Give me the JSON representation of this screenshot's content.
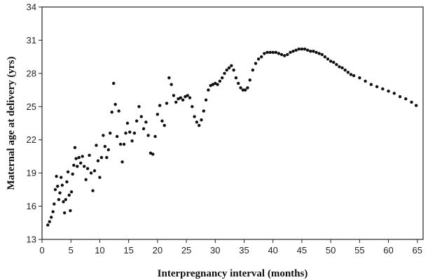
{
  "chart_data": {
    "type": "scatter",
    "title": "",
    "xlabel": "Interpregnancy interval (months)",
    "ylabel": "Maternal age at delivery (yrs)",
    "xlim": [
      0,
      66
    ],
    "ylim": [
      13,
      34
    ],
    "x_ticks": [
      0,
      5,
      10,
      15,
      20,
      25,
      30,
      35,
      40,
      45,
      50,
      55,
      60,
      65
    ],
    "y_ticks": [
      13,
      16,
      19,
      22,
      25,
      28,
      31,
      34
    ],
    "grid": false,
    "legend": "none",
    "marker_color": "#111111",
    "series": [
      {
        "points": [
          [
            1.0,
            14.3
          ],
          [
            1.3,
            14.6
          ],
          [
            1.6,
            15.0
          ],
          [
            1.9,
            15.5
          ],
          [
            2.1,
            16.2
          ],
          [
            2.3,
            17.5
          ],
          [
            2.5,
            18.7
          ],
          [
            2.7,
            17.8
          ],
          [
            2.9,
            16.6
          ],
          [
            3.1,
            17.2
          ],
          [
            3.3,
            18.6
          ],
          [
            3.5,
            17.9
          ],
          [
            3.7,
            16.4
          ],
          [
            3.9,
            15.4
          ],
          [
            4.1,
            16.6
          ],
          [
            4.3,
            18.2
          ],
          [
            4.5,
            19.1
          ],
          [
            4.7,
            17.0
          ],
          [
            4.9,
            15.6
          ],
          [
            5.1,
            17.3
          ],
          [
            5.3,
            18.9
          ],
          [
            5.5,
            19.7
          ],
          [
            5.7,
            21.3
          ],
          [
            5.9,
            20.3
          ],
          [
            6.1,
            19.6
          ],
          [
            6.4,
            20.4
          ],
          [
            6.7,
            19.9
          ],
          [
            7.0,
            20.5
          ],
          [
            7.3,
            19.6
          ],
          [
            7.6,
            18.4
          ],
          [
            7.9,
            19.4
          ],
          [
            8.2,
            20.6
          ],
          [
            8.5,
            19.0
          ],
          [
            8.8,
            17.4
          ],
          [
            9.1,
            19.2
          ],
          [
            9.4,
            21.5
          ],
          [
            9.7,
            20.1
          ],
          [
            10.0,
            18.6
          ],
          [
            10.3,
            20.4
          ],
          [
            10.6,
            22.4
          ],
          [
            10.9,
            21.4
          ],
          [
            11.2,
            20.4
          ],
          [
            11.5,
            21.1
          ],
          [
            11.8,
            22.6
          ],
          [
            12.1,
            24.5
          ],
          [
            12.4,
            27.1
          ],
          [
            12.7,
            25.2
          ],
          [
            13.0,
            22.3
          ],
          [
            13.3,
            24.6
          ],
          [
            13.6,
            21.6
          ],
          [
            13.9,
            20.0
          ],
          [
            14.2,
            21.6
          ],
          [
            14.5,
            22.6
          ],
          [
            14.8,
            23.5
          ],
          [
            15.2,
            22.7
          ],
          [
            15.6,
            21.9
          ],
          [
            16.0,
            22.6
          ],
          [
            16.4,
            23.7
          ],
          [
            16.8,
            25.0
          ],
          [
            17.2,
            24.1
          ],
          [
            17.6,
            23.0
          ],
          [
            18.0,
            23.6
          ],
          [
            18.4,
            22.4
          ],
          [
            18.8,
            20.8
          ],
          [
            19.2,
            20.7
          ],
          [
            19.6,
            22.3
          ],
          [
            20.0,
            24.3
          ],
          [
            20.4,
            25.1
          ],
          [
            20.8,
            23.7
          ],
          [
            21.2,
            23.3
          ],
          [
            21.6,
            25.3
          ],
          [
            22.0,
            27.6
          ],
          [
            22.4,
            27.0
          ],
          [
            22.8,
            26.0
          ],
          [
            23.2,
            25.4
          ],
          [
            23.6,
            25.7
          ],
          [
            24.0,
            25.8
          ],
          [
            24.4,
            25.6
          ],
          [
            24.8,
            25.9
          ],
          [
            25.2,
            26.0
          ],
          [
            25.6,
            25.8
          ],
          [
            26.0,
            25.0
          ],
          [
            26.4,
            24.1
          ],
          [
            26.8,
            23.6
          ],
          [
            27.2,
            23.3
          ],
          [
            27.6,
            23.8
          ],
          [
            28.0,
            24.6
          ],
          [
            28.4,
            25.6
          ],
          [
            28.8,
            26.5
          ],
          [
            29.2,
            26.9
          ],
          [
            29.6,
            27.0
          ],
          [
            30.0,
            27.1
          ],
          [
            30.4,
            27.0
          ],
          [
            30.8,
            27.3
          ],
          [
            31.2,
            27.6
          ],
          [
            31.6,
            28.0
          ],
          [
            32.0,
            28.3
          ],
          [
            32.4,
            28.5
          ],
          [
            32.8,
            28.7
          ],
          [
            33.2,
            28.3
          ],
          [
            33.6,
            27.6
          ],
          [
            34.0,
            27.1
          ],
          [
            34.4,
            26.7
          ],
          [
            34.8,
            26.5
          ],
          [
            35.2,
            26.5
          ],
          [
            35.6,
            26.7
          ],
          [
            36.0,
            27.4
          ],
          [
            36.5,
            28.3
          ],
          [
            37.0,
            28.9
          ],
          [
            37.5,
            29.3
          ],
          [
            38.0,
            29.5
          ],
          [
            38.5,
            29.8
          ],
          [
            39.0,
            29.9
          ],
          [
            39.5,
            29.9
          ],
          [
            40.0,
            29.9
          ],
          [
            40.5,
            29.9
          ],
          [
            41.0,
            29.8
          ],
          [
            41.5,
            29.7
          ],
          [
            42.0,
            29.6
          ],
          [
            42.5,
            29.7
          ],
          [
            43.0,
            29.9
          ],
          [
            43.5,
            30.0
          ],
          [
            44.0,
            30.1
          ],
          [
            44.5,
            30.2
          ],
          [
            45.0,
            30.2
          ],
          [
            45.5,
            30.2
          ],
          [
            46.0,
            30.1
          ],
          [
            46.5,
            30.0
          ],
          [
            47.0,
            30.0
          ],
          [
            47.5,
            29.9
          ],
          [
            48.0,
            29.8
          ],
          [
            48.5,
            29.7
          ],
          [
            49.0,
            29.5
          ],
          [
            49.5,
            29.3
          ],
          [
            50.0,
            29.1
          ],
          [
            50.5,
            29.0
          ],
          [
            51.0,
            28.8
          ],
          [
            51.5,
            28.6
          ],
          [
            52.0,
            28.5
          ],
          [
            52.5,
            28.3
          ],
          [
            53.0,
            28.1
          ],
          [
            53.5,
            27.9
          ],
          [
            54.0,
            27.8
          ],
          [
            55.0,
            27.6
          ],
          [
            56.0,
            27.3
          ],
          [
            57.0,
            27.0
          ],
          [
            58.0,
            26.8
          ],
          [
            59.0,
            26.6
          ],
          [
            60.0,
            26.4
          ],
          [
            61.0,
            26.2
          ],
          [
            62.0,
            25.9
          ],
          [
            63.0,
            25.7
          ],
          [
            64.0,
            25.4
          ],
          [
            64.8,
            25.1
          ]
        ]
      }
    ]
  }
}
